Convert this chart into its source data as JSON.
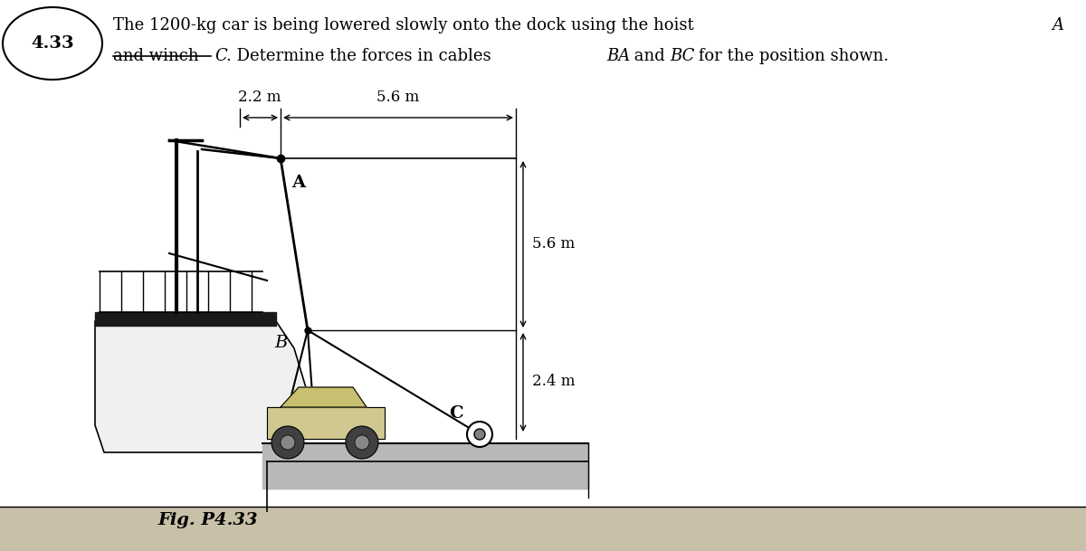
{
  "title_num": "4.33",
  "title_line1_plain": "The 1200-kg car is being lowered slowly onto the dock using the hoist ",
  "title_line1_italic": "A",
  "title_line2_plain1": "and winch ",
  "title_line2_italic1": "C",
  "title_line2_plain2": ". Determine the forces in cables ",
  "title_line2_italic2": "BA",
  "title_line2_plain3": " and ",
  "title_line2_italic3": "BC",
  "title_line2_plain4": " for the position shown.",
  "fig_label": "Fig. P4.33",
  "dim_22": "2.2 m",
  "dim_56_top": "5.6 m",
  "dim_56_right": "5.6 m",
  "dim_24": "2.4 m",
  "label_A": "A",
  "label_B": "B",
  "label_C": "C",
  "bg_color": "#ffffff",
  "strikethrough_color": "#000000"
}
